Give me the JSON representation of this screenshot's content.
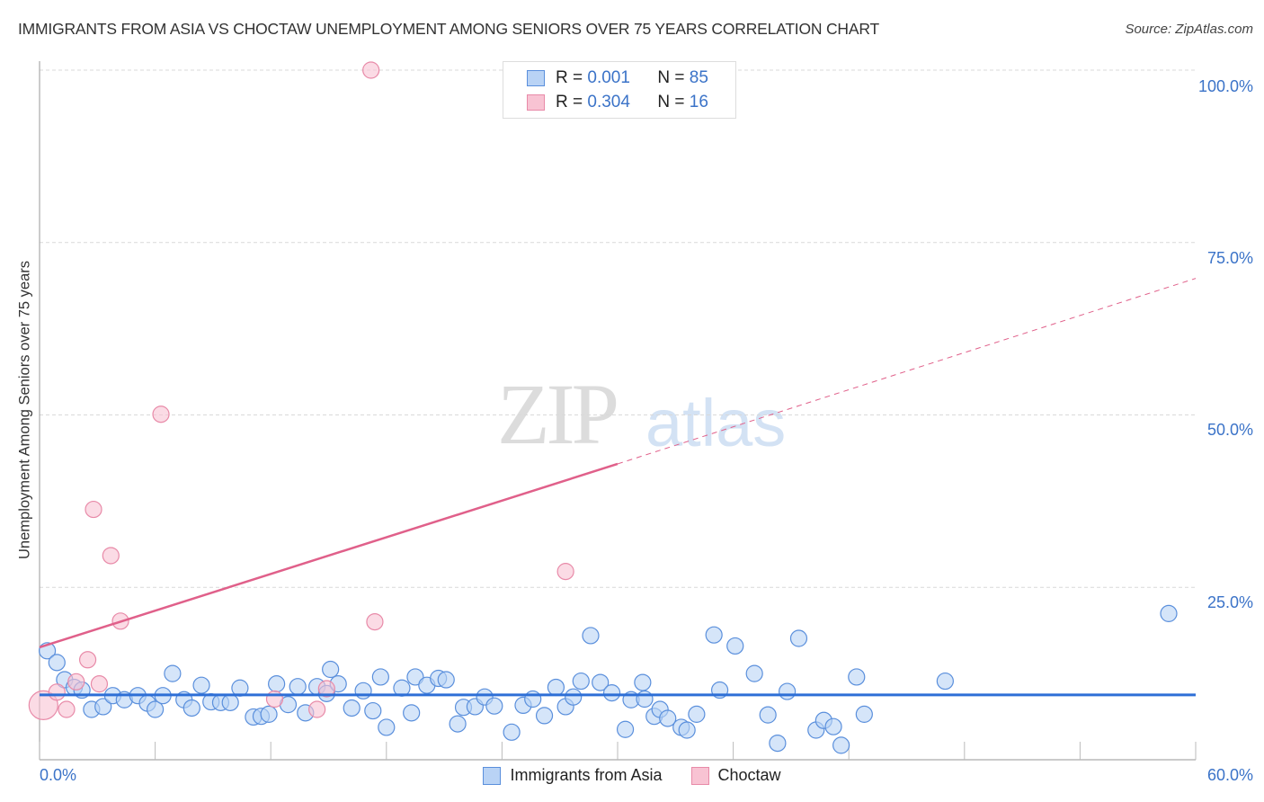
{
  "title": "IMMIGRANTS FROM ASIA VS CHOCTAW UNEMPLOYMENT AMONG SENIORS OVER 75 YEARS CORRELATION CHART",
  "source": "Source: ZipAtlas.com",
  "watermark": {
    "zip": "ZIP",
    "atlas": "atlas"
  },
  "legend": {
    "rows": [
      {
        "r_label": "R =",
        "r_value": "0.001",
        "n_label": "N =",
        "n_value": "85"
      },
      {
        "r_label": "R =",
        "r_value": "0.304",
        "n_label": "N =",
        "n_value": "16"
      }
    ]
  },
  "bottom_legend": [
    "Immigrants from Asia",
    "Choctaw"
  ],
  "colors": {
    "blue_fill": "#b9d3f5",
    "blue_stroke": "#5a8fdc",
    "blue_line": "#2e6fd6",
    "pink_fill": "#f8c3d3",
    "pink_stroke": "#e88aa8",
    "pink_line": "#e0608a",
    "tick_text": "#3b73c8"
  },
  "chart_data": {
    "type": "scatter",
    "title": "IMMIGRANTS FROM ASIA VS CHOCTAW UNEMPLOYMENT AMONG SENIORS OVER 75 YEARS CORRELATION CHART",
    "xlabel": "",
    "ylabel": "Unemployment Among Seniors over 75 years",
    "xlim": [
      0,
      60
    ],
    "ylim": [
      0,
      100
    ],
    "x_tick_labels": [
      "0.0%",
      "60.0%"
    ],
    "y_tick_labels": [
      "100.0%",
      "75.0%",
      "50.0%",
      "25.0%"
    ],
    "grid": {
      "horizontal": true,
      "style": "dashed"
    },
    "legend_position": "bottom-center",
    "series": [
      {
        "name": "Immigrants from Asia",
        "R": 0.001,
        "N": 85,
        "trend": {
          "x": [
            0,
            60
          ],
          "y": [
            9.4,
            9.4
          ],
          "style": "solid"
        },
        "points": [
          [
            0.4,
            15.8
          ],
          [
            0.9,
            14.1
          ],
          [
            1.3,
            11.6
          ],
          [
            1.8,
            10.5
          ],
          [
            2.2,
            10.1
          ],
          [
            2.7,
            7.3
          ],
          [
            3.3,
            7.7
          ],
          [
            3.8,
            9.3
          ],
          [
            4.4,
            8.7
          ],
          [
            5.1,
            9.3
          ],
          [
            5.6,
            8.2
          ],
          [
            6.0,
            7.3
          ],
          [
            6.4,
            9.3
          ],
          [
            6.9,
            12.5
          ],
          [
            7.5,
            8.7
          ],
          [
            7.9,
            7.5
          ],
          [
            8.4,
            10.8
          ],
          [
            8.9,
            8.4
          ],
          [
            9.4,
            8.3
          ],
          [
            9.9,
            8.3
          ],
          [
            10.4,
            10.4
          ],
          [
            11.1,
            6.2
          ],
          [
            11.5,
            6.3
          ],
          [
            11.9,
            6.6
          ],
          [
            12.3,
            11.0
          ],
          [
            12.9,
            8.0
          ],
          [
            13.4,
            10.6
          ],
          [
            13.8,
            6.8
          ],
          [
            14.4,
            10.6
          ],
          [
            14.9,
            9.6
          ],
          [
            15.1,
            13.1
          ],
          [
            15.5,
            11.0
          ],
          [
            16.2,
            7.5
          ],
          [
            16.8,
            10.0
          ],
          [
            17.3,
            7.1
          ],
          [
            17.7,
            12.0
          ],
          [
            18.0,
            4.7
          ],
          [
            18.8,
            10.4
          ],
          [
            19.3,
            6.8
          ],
          [
            19.5,
            12.0
          ],
          [
            20.1,
            10.8
          ],
          [
            20.7,
            11.8
          ],
          [
            21.1,
            11.6
          ],
          [
            21.7,
            5.2
          ],
          [
            22.0,
            7.6
          ],
          [
            22.6,
            7.7
          ],
          [
            23.1,
            9.1
          ],
          [
            23.6,
            7.8
          ],
          [
            24.5,
            4.0
          ],
          [
            25.1,
            7.9
          ],
          [
            25.6,
            8.8
          ],
          [
            26.2,
            6.4
          ],
          [
            26.8,
            10.5
          ],
          [
            27.3,
            7.7
          ],
          [
            27.7,
            9.1
          ],
          [
            28.1,
            11.4
          ],
          [
            28.6,
            18.0
          ],
          [
            29.1,
            11.2
          ],
          [
            29.7,
            9.7
          ],
          [
            30.4,
            4.4
          ],
          [
            30.7,
            8.7
          ],
          [
            31.3,
            11.2
          ],
          [
            31.4,
            8.8
          ],
          [
            31.9,
            6.3
          ],
          [
            32.2,
            7.3
          ],
          [
            32.6,
            6.0
          ],
          [
            33.3,
            4.7
          ],
          [
            33.6,
            4.3
          ],
          [
            34.1,
            6.6
          ],
          [
            35.0,
            18.1
          ],
          [
            35.3,
            10.1
          ],
          [
            36.1,
            16.5
          ],
          [
            37.1,
            12.5
          ],
          [
            37.8,
            6.5
          ],
          [
            38.3,
            2.4
          ],
          [
            38.8,
            9.9
          ],
          [
            39.4,
            17.6
          ],
          [
            40.3,
            4.3
          ],
          [
            40.7,
            5.7
          ],
          [
            41.2,
            4.8
          ],
          [
            41.6,
            2.1
          ],
          [
            42.4,
            12.0
          ],
          [
            42.8,
            6.6
          ],
          [
            47.0,
            11.4
          ],
          [
            58.6,
            21.2
          ]
        ]
      },
      {
        "name": "Choctaw",
        "R": 0.304,
        "N": 16,
        "trend": {
          "x": [
            0,
            30,
            60
          ],
          "y": [
            16.3,
            42.9,
            69.8
          ],
          "solid_until_x": 30,
          "style": "solid then dashed"
        },
        "points": [
          [
            0.2,
            7.9
          ],
          [
            0.9,
            9.8
          ],
          [
            1.4,
            7.3
          ],
          [
            1.9,
            11.3
          ],
          [
            2.5,
            14.5
          ],
          [
            3.1,
            11.0
          ],
          [
            2.8,
            36.3
          ],
          [
            3.7,
            29.6
          ],
          [
            4.2,
            20.1
          ],
          [
            6.3,
            50.1
          ],
          [
            12.2,
            8.8
          ],
          [
            14.9,
            10.3
          ],
          [
            14.4,
            7.3
          ],
          [
            17.2,
            100.0
          ],
          [
            17.4,
            20.0
          ],
          [
            27.3,
            27.3
          ]
        ]
      }
    ]
  }
}
